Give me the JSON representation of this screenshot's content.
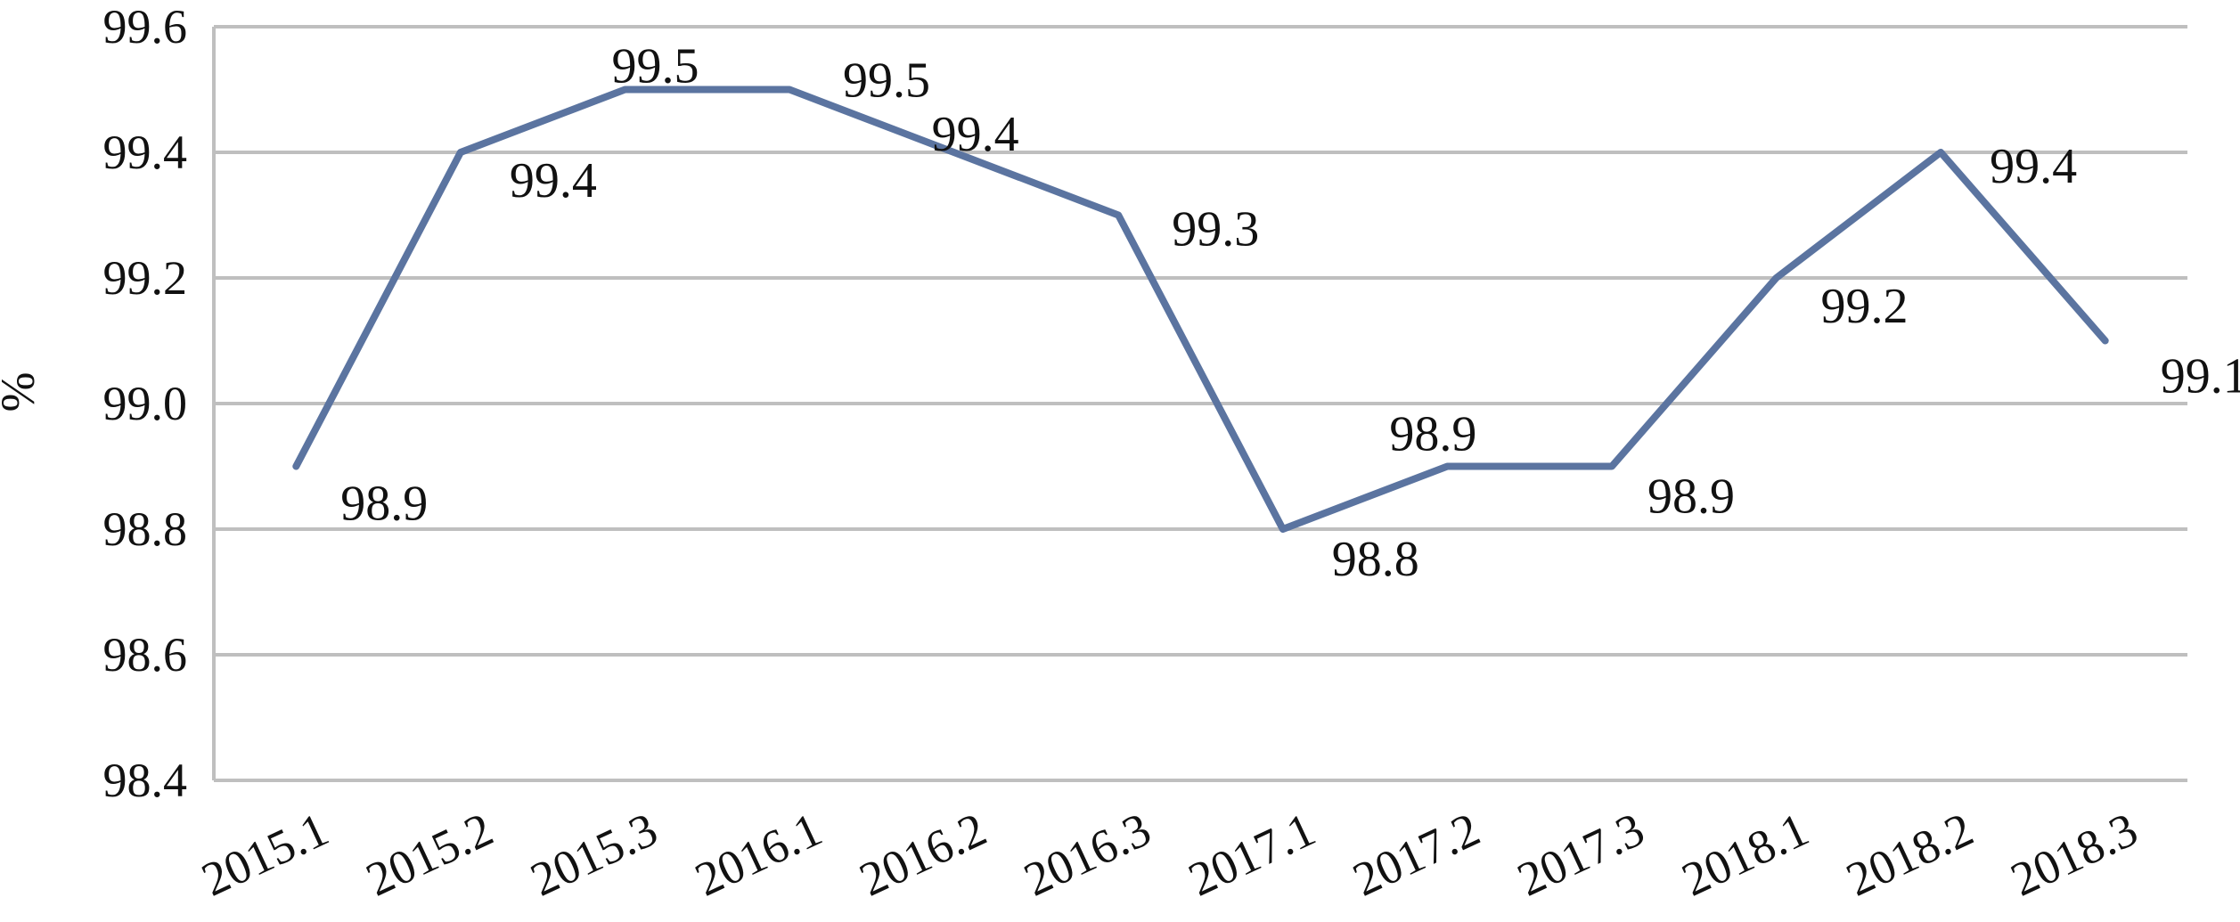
{
  "chart_data": {
    "type": "line",
    "title": "",
    "xlabel": "",
    "ylabel": "%",
    "ylim": [
      98.4,
      99.6
    ],
    "yticks": [
      "98.4",
      "98.6",
      "98.8",
      "99.0",
      "99.2",
      "99.4",
      "99.6"
    ],
    "grid": "horizontal",
    "categories": [
      "2015.1",
      "2015.2",
      "2015.3",
      "2016.1",
      "2016.2",
      "2016.3",
      "2017.1",
      "2017.2",
      "2017.3",
      "2018.1",
      "2018.2",
      "2018.3"
    ],
    "series": [
      {
        "values": [
          98.9,
          99.4,
          99.5,
          99.5,
          99.4,
          99.3,
          98.8,
          98.9,
          98.9,
          99.2,
          99.4,
          99.1
        ],
        "labels": [
          "98.9",
          "99.4",
          "99.5",
          "99.5",
          "99.4",
          "99.3",
          "98.8",
          "98.9",
          "98.9",
          "99.2",
          "99.4",
          "99.1"
        ],
        "color": "#5b74a0"
      }
    ]
  }
}
